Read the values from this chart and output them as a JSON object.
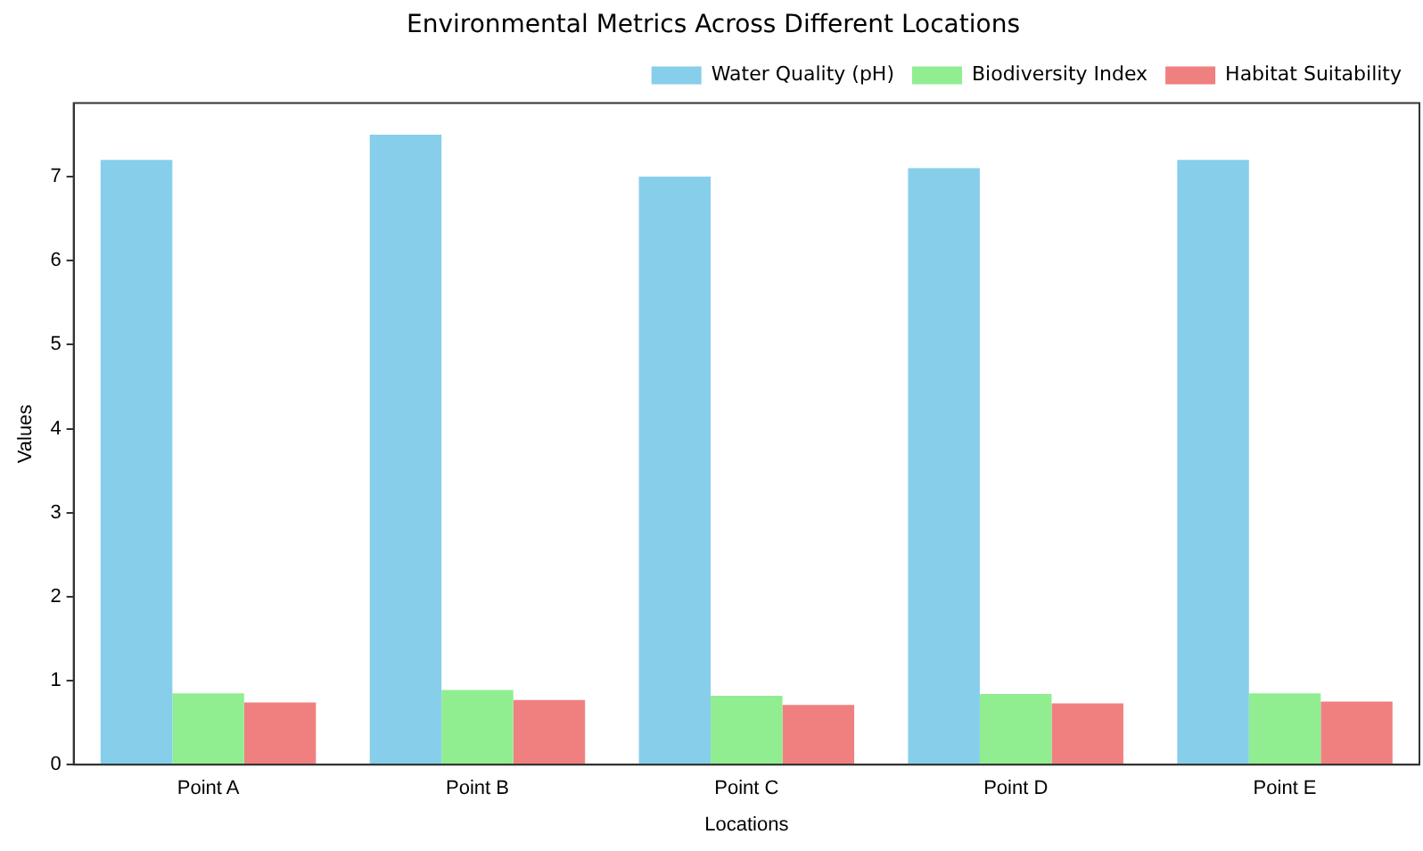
{
  "chart_data": {
    "type": "bar",
    "title": "Environmental Metrics Across Different Locations",
    "xlabel": "Locations",
    "ylabel": "Values",
    "categories": [
      "Point A",
      "Point B",
      "Point C",
      "Point D",
      "Point E"
    ],
    "series": [
      {
        "name": "Water Quality (pH)",
        "color": "#87ceeb",
        "values": [
          7.2,
          7.5,
          7.0,
          7.1,
          7.2
        ]
      },
      {
        "name": "Biodiversity Index",
        "color": "#90ee90",
        "values": [
          0.85,
          0.89,
          0.82,
          0.84,
          0.85
        ]
      },
      {
        "name": "Habitat Suitability",
        "color": "#f08080",
        "values": [
          0.74,
          0.77,
          0.71,
          0.73,
          0.75
        ]
      }
    ],
    "ylim": [
      0,
      7.875
    ],
    "yticks": [
      0,
      1,
      2,
      3,
      4,
      5,
      6,
      7
    ],
    "grid": false,
    "legend": "top right"
  }
}
